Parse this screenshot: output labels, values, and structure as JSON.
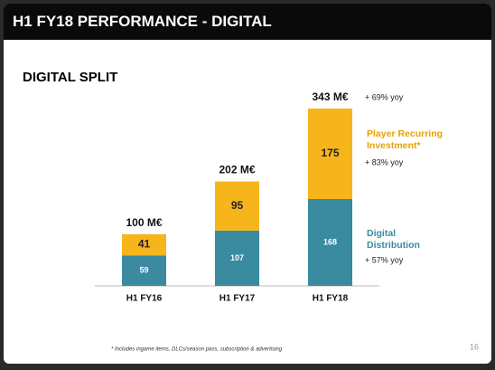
{
  "header": {
    "title": "H1 FY18 PERFORMANCE - DIGITAL",
    "page_number": "16"
  },
  "chart_data": {
    "type": "stacked-bar",
    "title": "DIGITAL SPLIT",
    "categories": [
      "H1 FY16",
      "H1 FY17",
      "H1 FY18"
    ],
    "series": [
      {
        "name": "Digital Distribution",
        "color": "#3a8aa0",
        "values": [
          59,
          107,
          168
        ],
        "yoy": "+ 57% yoy"
      },
      {
        "name": "Player Recurring Investment*",
        "color": "#f7b51c",
        "values": [
          41,
          95,
          175
        ],
        "yoy": "+ 83% yoy"
      }
    ],
    "totals": {
      "values": [
        100,
        202,
        343
      ],
      "value_labels": [
        "100 M€",
        "202 M€",
        "343 M€"
      ],
      "yoy": "+ 69% yoy"
    },
    "footnote": "* Includes ingame items, DLCs/season pass, subscription & advertising"
  }
}
